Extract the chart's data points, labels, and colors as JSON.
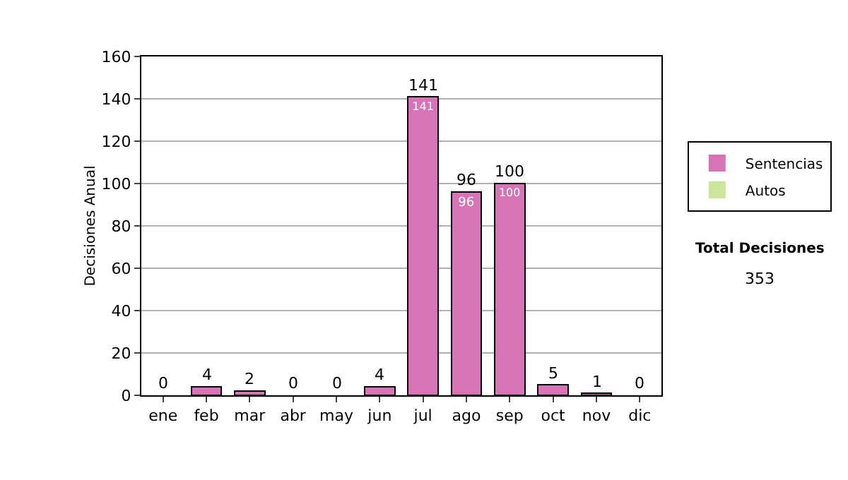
{
  "chart_data": {
    "type": "bar",
    "stacked": true,
    "ylabel": "Decisiones Anual",
    "categories": [
      "ene",
      "feb",
      "mar",
      "abr",
      "may",
      "jun",
      "jul",
      "ago",
      "sep",
      "oct",
      "nov",
      "dic"
    ],
    "series": [
      {
        "name": "Sentencias",
        "color": "#d774b8",
        "values": [
          0,
          4,
          2,
          0,
          0,
          4,
          141,
          96,
          100,
          5,
          1,
          0
        ],
        "value_labels": [
          null,
          null,
          null,
          null,
          null,
          null,
          "141",
          "96",
          "100",
          null,
          null,
          null
        ]
      },
      {
        "name": "Autos",
        "color": "#cce699",
        "values": [
          0,
          0,
          0,
          0,
          0,
          0,
          0,
          0,
          0,
          0,
          0,
          0
        ]
      }
    ],
    "totals": [
      "0",
      "4",
      "2",
      "0",
      "0",
      "4",
      "141",
      "96",
      "100",
      "5",
      "1",
      "0"
    ],
    "ylim": [
      0,
      160
    ],
    "yticks": [
      0,
      20,
      40,
      60,
      80,
      100,
      120,
      140,
      160
    ],
    "grid": "y",
    "legend": "right",
    "annotations": [
      "Total Decisiones",
      "353"
    ]
  }
}
